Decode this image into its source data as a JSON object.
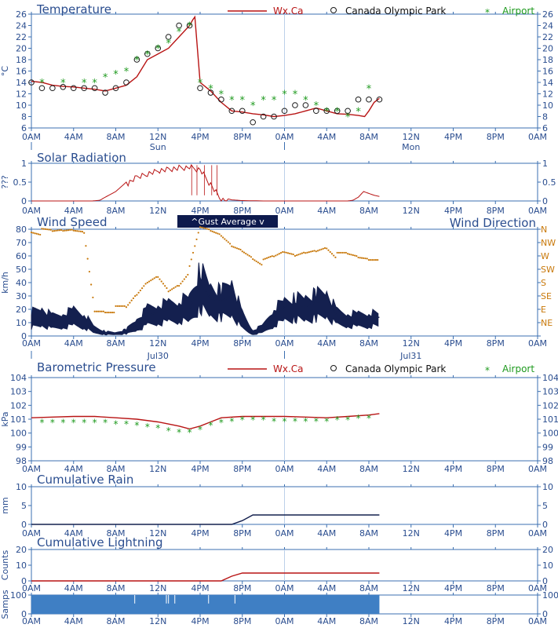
{
  "colors": {
    "frame": "#3b6fb0",
    "text": "#2a4d8f",
    "wxca": "#b81414",
    "airport": "#1e9a1e",
    "park": "#1a1a1a",
    "wind": "#14204f",
    "direction": "#c8780a",
    "samples": "#3f7fc4",
    "grid": "#bcd0ea"
  },
  "time_axis": {
    "tick_labels": [
      "0AM",
      "4AM",
      "8AM",
      "12N",
      "4PM",
      "8PM",
      "0AM",
      "4AM",
      "8AM",
      "12N",
      "4PM",
      "8PM",
      "0AM"
    ],
    "day_labels_a": [
      "Sun",
      "Mon"
    ],
    "day_labels_b": [
      "Jul30",
      "Jul31"
    ]
  },
  "legend": {
    "wxca": "Wx.Ca",
    "park": "Canada Olympic Park",
    "airport": "Airport"
  },
  "wind_legend": "^Gust   Average v",
  "chart_data": [
    {
      "id": "temperature",
      "type": "line",
      "title": "Temperature",
      "ylabel": "°C",
      "ylim": [
        6,
        26
      ],
      "yticks": [
        6,
        8,
        10,
        12,
        14,
        16,
        18,
        20,
        22,
        24,
        26
      ],
      "series": [
        {
          "name": "Wx.Ca",
          "x": [
            0,
            1,
            2,
            3,
            4,
            5,
            6,
            7,
            8,
            9,
            10,
            11,
            12,
            13,
            14,
            15,
            15.3,
            15.5,
            16,
            17,
            18,
            19,
            20,
            21,
            22,
            23,
            24,
            25,
            26,
            27,
            28,
            29,
            30,
            31,
            31.6,
            32,
            32.5,
            33
          ],
          "values": [
            14.2,
            14,
            13.5,
            13.3,
            13.2,
            13,
            12.8,
            12.5,
            13,
            13.5,
            15,
            18,
            19,
            20,
            22,
            24,
            25,
            25.5,
            14,
            12.5,
            10.5,
            9,
            8.8,
            8.5,
            8.3,
            8,
            8.2,
            8.5,
            9,
            9.5,
            9,
            8.5,
            8.4,
            8.2,
            8,
            9,
            10.5,
            11.2
          ]
        },
        {
          "name": "Canada Olympic Park",
          "x": [
            0,
            1,
            2,
            3,
            4,
            5,
            6,
            7,
            8,
            9,
            10,
            11,
            12,
            13,
            14,
            15,
            16,
            17,
            18,
            19,
            20,
            21,
            22,
            23,
            24,
            25,
            26,
            27,
            28,
            29,
            30,
            31,
            32,
            33
          ],
          "values": [
            14,
            13,
            13,
            13.2,
            13,
            13,
            13,
            12.2,
            13,
            14,
            18,
            19,
            20,
            22,
            24,
            24,
            13,
            12.2,
            11,
            9,
            9,
            7,
            8,
            8,
            9,
            10,
            10,
            9,
            9,
            9,
            9,
            11,
            11,
            11
          ]
        },
        {
          "name": "Airport",
          "x": [
            1,
            3,
            5,
            6,
            7,
            8,
            9,
            10,
            11,
            12,
            13,
            14,
            15,
            16,
            17,
            18,
            19,
            20,
            21,
            22,
            23,
            24,
            25,
            26,
            27,
            28,
            29,
            30,
            31,
            32
          ],
          "values": [
            14,
            14,
            14,
            14,
            15,
            15.5,
            16,
            18,
            19,
            20,
            21,
            23,
            24,
            14,
            13,
            12,
            11,
            11,
            10,
            11,
            11,
            12,
            12,
            11,
            10,
            9,
            9,
            8,
            9,
            13
          ]
        }
      ]
    },
    {
      "id": "solar",
      "type": "area",
      "title": "Solar Radiation",
      "ylabel": "???",
      "ylim": [
        0,
        1
      ],
      "yticks": [
        0,
        0.5,
        1
      ],
      "series": [
        {
          "name": "solar",
          "x": [
            0,
            5.8,
            6.5,
            7,
            8,
            9,
            10,
            11,
            12,
            13,
            14,
            15,
            16,
            17,
            18,
            19,
            20,
            22,
            24,
            26,
            28,
            30,
            30.5,
            31,
            31.5,
            32,
            32.5,
            33
          ],
          "values": [
            0,
            0,
            0.02,
            0.1,
            0.25,
            0.5,
            0.7,
            0.8,
            0.88,
            0.92,
            0.95,
            0.97,
            0.9,
            0.5,
            0.1,
            0.03,
            0.01,
            0,
            0,
            0,
            0,
            0,
            0.02,
            0.1,
            0.25,
            0.2,
            0.15,
            0.12
          ]
        }
      ]
    },
    {
      "id": "wind",
      "type": "line",
      "title": "Wind Speed",
      "title_right": "Wind Direction",
      "ylabel": "km/h",
      "ylim": [
        0,
        80
      ],
      "yticks": [
        0,
        10,
        20,
        30,
        40,
        50,
        60,
        70,
        80
      ],
      "direction_labels": [
        "NE",
        "E",
        "SE",
        "S",
        "SW",
        "W",
        "NW",
        "N"
      ],
      "series": [
        {
          "name": "Average",
          "x": [
            0,
            1,
            2,
            3,
            4,
            5,
            6,
            7,
            8,
            9,
            10,
            11,
            12,
            13,
            14,
            15,
            16,
            17,
            18,
            19,
            20,
            21,
            22,
            23,
            24,
            25,
            26,
            27,
            28,
            29,
            30,
            31,
            32,
            33
          ],
          "values": [
            12,
            15,
            10,
            12,
            15,
            12,
            4,
            2,
            2,
            3,
            8,
            15,
            18,
            20,
            22,
            20,
            40,
            28,
            26,
            30,
            10,
            2,
            5,
            15,
            22,
            24,
            22,
            25,
            28,
            15,
            14,
            13,
            14,
            14
          ]
        },
        {
          "name": "Gust",
          "x": [
            0,
            1,
            2,
            3,
            4,
            5,
            6,
            7,
            8,
            9,
            10,
            11,
            12,
            13,
            14,
            15,
            16,
            17,
            18,
            19,
            20,
            21,
            22,
            23,
            24,
            25,
            26,
            27,
            28,
            29,
            30,
            31,
            32,
            33
          ],
          "values": [
            22,
            25,
            18,
            20,
            24,
            20,
            8,
            4,
            3,
            6,
            15,
            25,
            28,
            30,
            32,
            35,
            60,
            45,
            40,
            50,
            20,
            5,
            10,
            25,
            32,
            34,
            35,
            38,
            40,
            22,
            20,
            20,
            21,
            20
          ]
        },
        {
          "name": "Direction",
          "x": [
            0,
            1,
            2,
            3,
            4,
            5,
            6,
            7,
            8,
            9,
            10,
            11,
            12,
            13,
            14,
            15,
            16,
            17,
            18,
            19,
            20,
            21,
            22,
            23,
            24,
            25,
            26,
            27,
            28,
            29,
            30,
            31,
            32,
            33
          ],
          "values": [
            80,
            78,
            77,
            78,
            79,
            78,
            20,
            20,
            20,
            20,
            30,
            40,
            45,
            35,
            40,
            50,
            80,
            78,
            75,
            68,
            65,
            60,
            55,
            58,
            62,
            60,
            63,
            65,
            68,
            60,
            60,
            58,
            57,
            57
          ]
        }
      ]
    },
    {
      "id": "pressure",
      "type": "line",
      "title": "Barometric Pressure",
      "ylabel": "kPa",
      "ylim": [
        98,
        104
      ],
      "yticks": [
        98,
        99,
        100,
        101,
        102,
        103,
        104
      ],
      "series": [
        {
          "name": "Wx.Ca",
          "x": [
            0,
            2,
            4,
            6,
            8,
            10,
            12,
            14,
            15,
            16,
            17,
            18,
            20,
            22,
            24,
            26,
            28,
            30,
            32,
            33
          ],
          "values": [
            101.1,
            101.15,
            101.2,
            101.2,
            101.1,
            101.0,
            100.8,
            100.5,
            100.3,
            100.5,
            100.8,
            101.1,
            101.2,
            101.2,
            101.2,
            101.15,
            101.1,
            101.2,
            101.3,
            101.4
          ]
        },
        {
          "name": "Airport",
          "x": [
            1,
            2,
            3,
            4,
            5,
            6,
            7,
            8,
            9,
            10,
            11,
            12,
            13,
            14,
            15,
            16,
            17,
            18,
            19,
            20,
            21,
            22,
            23,
            24,
            25,
            26,
            27,
            28,
            29,
            30,
            31,
            32
          ],
          "values": [
            100.8,
            100.8,
            100.8,
            100.8,
            100.8,
            100.8,
            100.8,
            100.7,
            100.7,
            100.6,
            100.5,
            100.4,
            100.2,
            100.1,
            100.1,
            100.3,
            100.6,
            100.8,
            100.9,
            101.0,
            101.0,
            101.0,
            100.9,
            100.9,
            100.9,
            100.9,
            100.9,
            100.9,
            101.0,
            101.0,
            101.1,
            101.1
          ]
        }
      ]
    },
    {
      "id": "rain",
      "type": "line",
      "title": "Cumulative Rain",
      "ylabel": "mm",
      "ylim": [
        0,
        10
      ],
      "yticks": [
        0,
        5,
        10
      ],
      "series": [
        {
          "name": "rain",
          "x": [
            0,
            19,
            20,
            21,
            33
          ],
          "values": [
            0,
            0,
            1,
            2.5,
            2.5
          ]
        }
      ]
    },
    {
      "id": "lightning",
      "type": "line",
      "title": "Cumulative Lightning",
      "ylabel": "Counts",
      "ylim": [
        0,
        20
      ],
      "yticks": [
        0,
        10,
        20
      ],
      "series": [
        {
          "name": "lightning",
          "x": [
            0,
            18,
            19,
            20,
            33
          ],
          "values": [
            0,
            0,
            3,
            5,
            5
          ]
        }
      ]
    },
    {
      "id": "samples",
      "type": "bar",
      "title": "",
      "ylabel": "Samps",
      "ylim": [
        0,
        100
      ],
      "yticks": [
        0,
        100
      ],
      "series": [
        {
          "name": "samples",
          "x": [
            0,
            33
          ],
          "values": [
            100,
            100
          ]
        }
      ]
    }
  ]
}
